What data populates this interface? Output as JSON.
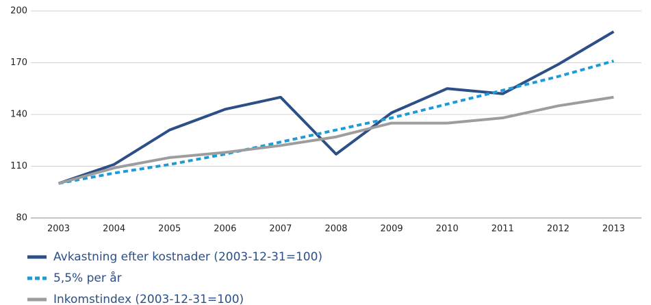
{
  "chart_data": {
    "type": "line",
    "categories": [
      "2003",
      "2004",
      "2005",
      "2006",
      "2007",
      "2008",
      "2009",
      "2010",
      "2011",
      "2012",
      "2013"
    ],
    "series": [
      {
        "name": "Avkastning efter kostnader (2003-12-31=100)",
        "color": "#2b4f86",
        "dashed": false,
        "values": [
          100,
          111,
          131,
          143,
          150,
          117,
          141,
          155,
          152,
          169,
          188
        ]
      },
      {
        "name": "5,5% per år",
        "color": "#1d9bd7",
        "dashed": true,
        "values": [
          100,
          106,
          111,
          117,
          124,
          131,
          138,
          146,
          154,
          162,
          171
        ]
      },
      {
        "name": "Inkomstindex (2003-12-31=100)",
        "color": "#9d9d9d",
        "dashed": false,
        "values": [
          100,
          109,
          115,
          118,
          122,
          127,
          135,
          135,
          138,
          145,
          150
        ]
      }
    ],
    "ylim": [
      80,
      200
    ],
    "yticks": [
      80,
      110,
      140,
      170,
      200
    ],
    "grid": true
  }
}
